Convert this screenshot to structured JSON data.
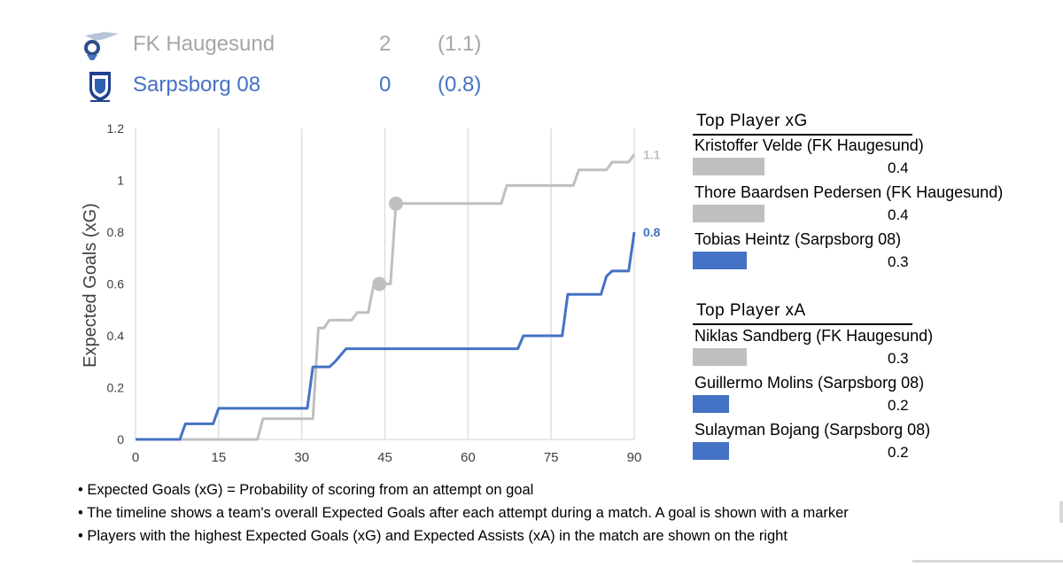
{
  "teams": [
    {
      "name": "FK Haugesund",
      "goals": "2",
      "xg": "(1.1)",
      "color": "#a6a6a6",
      "logo_icon": "fk-haugesund-crest-icon"
    },
    {
      "name": "Sarpsborg 08",
      "goals": "0",
      "xg": "(0.8)",
      "color": "#4472c4",
      "logo_icon": "sarpsborg-08-crest-icon"
    }
  ],
  "chart_data": {
    "type": "line",
    "ylabel": "Expected Goals (xG)",
    "xlim": [
      0,
      90
    ],
    "ylim": [
      0,
      1.2
    ],
    "x_ticks": [
      "0",
      "15",
      "30",
      "45",
      "60",
      "75",
      "90"
    ],
    "y_ticks": [
      "0",
      "0.2",
      "0.4",
      "0.6",
      "0.8",
      "1",
      "1.2"
    ],
    "grid": "vertical",
    "series": [
      {
        "color": "#bfbfbf",
        "end_label": "1.1",
        "points": [
          [
            0,
            0
          ],
          [
            22,
            0
          ],
          [
            23,
            0.08
          ],
          [
            32,
            0.08
          ],
          [
            33,
            0.43
          ],
          [
            34,
            0.43
          ],
          [
            35,
            0.46
          ],
          [
            39,
            0.46
          ],
          [
            40,
            0.49
          ],
          [
            42,
            0.49
          ],
          [
            43,
            0.6
          ],
          [
            46,
            0.6
          ],
          [
            47,
            0.91
          ],
          [
            66,
            0.91
          ],
          [
            67,
            0.98
          ],
          [
            79,
            0.98
          ],
          [
            80,
            1.04
          ],
          [
            85,
            1.04
          ],
          [
            86,
            1.07
          ],
          [
            89,
            1.07
          ],
          [
            90,
            1.1
          ]
        ],
        "goal_markers": [
          [
            44,
            0.6
          ],
          [
            47,
            0.91
          ]
        ]
      },
      {
        "color": "#4472c4",
        "end_label": "0.8",
        "points": [
          [
            0,
            0
          ],
          [
            8,
            0
          ],
          [
            9,
            0.06
          ],
          [
            14,
            0.06
          ],
          [
            15,
            0.12
          ],
          [
            31,
            0.12
          ],
          [
            32,
            0.28
          ],
          [
            35,
            0.28
          ],
          [
            36,
            0.3
          ],
          [
            38,
            0.35
          ],
          [
            69,
            0.35
          ],
          [
            70,
            0.4
          ],
          [
            77,
            0.4
          ],
          [
            78,
            0.56
          ],
          [
            84,
            0.56
          ],
          [
            85,
            0.63
          ],
          [
            86,
            0.65
          ],
          [
            89,
            0.65
          ],
          [
            90,
            0.8
          ]
        ],
        "goal_markers": []
      }
    ]
  },
  "top_xg": {
    "title": "Top Player xG",
    "players": [
      {
        "name": "Kristoffer Velde (FK Haugesund)",
        "value": "0.4",
        "num": 0.4,
        "color": "#bfbfbf"
      },
      {
        "name": "Thore Baardsen Pedersen (FK Haugesund)",
        "value": "0.4",
        "num": 0.4,
        "color": "#bfbfbf"
      },
      {
        "name": "Tobias Heintz (Sarpsborg 08)",
        "value": "0.3",
        "num": 0.3,
        "color": "#4472c4"
      }
    ]
  },
  "top_xa": {
    "title": "Top Player xA",
    "players": [
      {
        "name": "Niklas Sandberg (FK Haugesund)",
        "value": "0.3",
        "num": 0.3,
        "color": "#bfbfbf"
      },
      {
        "name": "Guillermo Molins (Sarpsborg 08)",
        "value": "0.2",
        "num": 0.2,
        "color": "#4472c4"
      },
      {
        "name": "Sulayman Bojang (Sarpsborg 08)",
        "value": "0.2",
        "num": 0.2,
        "color": "#4472c4"
      }
    ]
  },
  "notes": [
    "• Expected Goals (xG) = Probability of scoring from an attempt on goal",
    "• The timeline shows a team's overall Expected Goals after each attempt during a match. A goal is shown with a marker",
    "• Players with the highest Expected Goals (xG) and Expected Assists (xA) in the match are shown on the right"
  ]
}
